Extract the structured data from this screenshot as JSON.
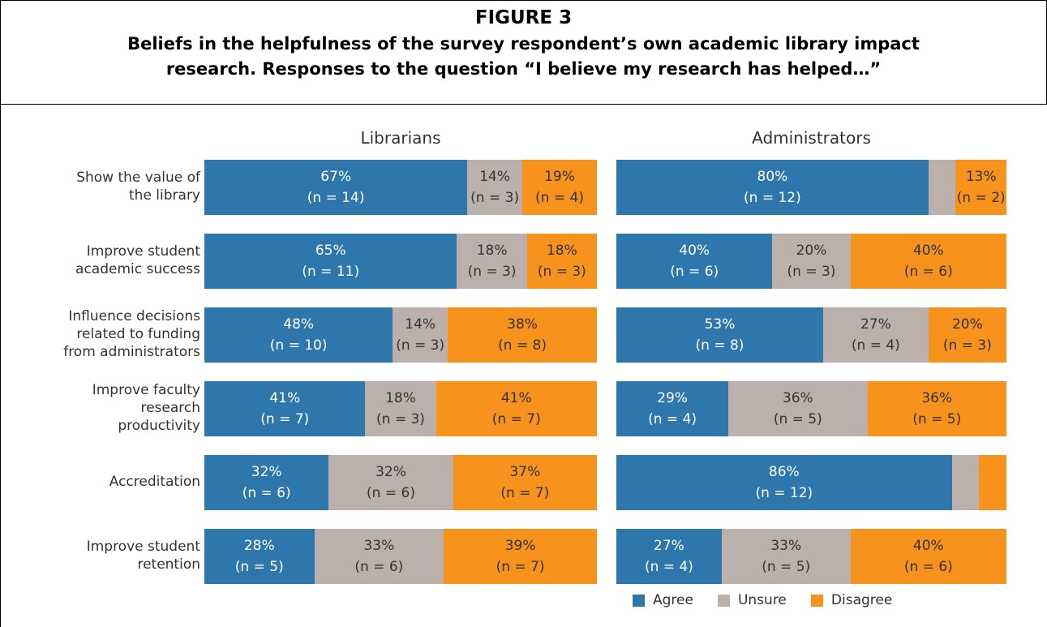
{
  "header": {
    "figure": "FIGURE 3",
    "caption": "Beliefs in the helpfulness of the survey respondent’s own academic library impact research. Responses to the question “I believe my research has helped…”"
  },
  "chart_data": [
    {
      "type": "bar",
      "orientation": "horizontal",
      "stacked": true,
      "title": "Librarians",
      "categories": [
        "Show the value of\nthe library",
        "Improve student\nacademic success",
        "Influence decisions\nrelated to funding\nfrom administrators",
        "Improve faculty\nresearch\nproductivity",
        "Accreditation",
        "Improve student\nretention"
      ],
      "series": [
        {
          "name": "Agree",
          "color": "#2e77ac",
          "values": [
            67,
            65,
            48,
            41,
            32,
            28
          ],
          "value_labels": [
            "67%",
            "65%",
            "48%",
            "41%",
            "32%",
            "28%"
          ],
          "count_labels": [
            "(n = 14)",
            "(n = 11)",
            "(n = 10)",
            "(n = 7)",
            "(n = 6)",
            "(n = 5)"
          ]
        },
        {
          "name": "Unsure",
          "color": "#bbb0ac",
          "values": [
            14,
            18,
            14,
            18,
            32,
            33
          ],
          "value_labels": [
            "14%",
            "18%",
            "14%",
            "18%",
            "32%",
            "33%"
          ],
          "count_labels": [
            "(n = 3)",
            "(n = 3)",
            "(n = 3)",
            "(n = 3)",
            "(n = 6)",
            "(n = 6)"
          ]
        },
        {
          "name": "Disagree",
          "color": "#f7921c",
          "values": [
            19,
            18,
            38,
            41,
            37,
            39
          ],
          "value_labels": [
            "19%",
            "18%",
            "38%",
            "41%",
            "37%",
            "39%"
          ],
          "count_labels": [
            "(n = 4)",
            "(n = 3)",
            "(n = 8)",
            "(n = 7)",
            "(n = 7)",
            "(n = 7)"
          ]
        }
      ]
    },
    {
      "type": "bar",
      "orientation": "horizontal",
      "stacked": true,
      "title": "Administrators",
      "series": [
        {
          "color": "#2e77ac",
          "values": [
            80,
            40,
            53,
            29,
            86,
            27
          ],
          "value_labels": [
            "80%",
            "40%",
            "53%",
            "29%",
            "86%",
            "27%"
          ],
          "count_labels": [
            "(n = 12)",
            "(n = 6)",
            "(n = 8)",
            "(n = 4)",
            "(n = 12)",
            "(n = 4)"
          ]
        },
        {
          "color": "#bbb0ac",
          "values": [
            7,
            20,
            27,
            36,
            7,
            33
          ],
          "value_labels": [
            null,
            "20%",
            "27%",
            "36%",
            null,
            "33%"
          ],
          "count_labels": [
            null,
            "(n = 3)",
            "(n = 4)",
            "(n = 5)",
            null,
            "(n = 5)"
          ]
        },
        {
          "color": "#f7921c",
          "values": [
            13,
            40,
            20,
            36,
            7,
            40
          ],
          "value_labels": [
            "13%",
            "40%",
            "20%",
            "36%",
            null,
            "40%"
          ],
          "count_labels": [
            "(n = 2)",
            "(n = 6)",
            "(n = 3)",
            "(n = 5)",
            null,
            "(n = 6)"
          ]
        }
      ]
    }
  ]
}
